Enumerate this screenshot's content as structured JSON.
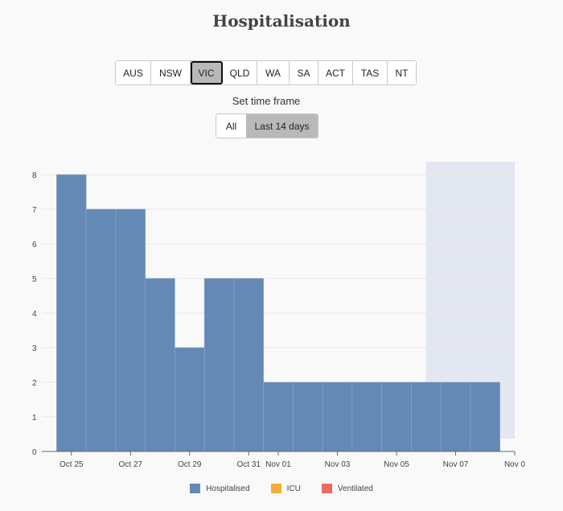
{
  "page": {
    "title": "Hospitalisation"
  },
  "regions": {
    "items": [
      "AUS",
      "NSW",
      "VIC",
      "QLD",
      "WA",
      "SA",
      "ACT",
      "TAS",
      "NT"
    ],
    "selected": "VIC"
  },
  "time_frame": {
    "label": "Set time frame",
    "options": [
      "All",
      "Last 14 days"
    ],
    "selected": "Last 14 days"
  },
  "colors": {
    "hospitalised": "#6589b5",
    "icu": "#f6ac36",
    "ventilated": "#ee6b61",
    "shaded_region": "#e3e7f1"
  },
  "chart_data": {
    "type": "bar",
    "title": "Hospitalisation",
    "xlabel": "",
    "ylabel": "",
    "ylim": [
      0,
      8
    ],
    "yticks": [
      0,
      1,
      2,
      3,
      4,
      5,
      6,
      7,
      8
    ],
    "x_range": [
      "2020-10-24",
      "2020-11-09"
    ],
    "xtick_labels": [
      {
        "date": "2020-10-25",
        "label": "Oct 25"
      },
      {
        "date": "2020-10-27",
        "label": "Oct 27"
      },
      {
        "date": "2020-10-29",
        "label": "Oct 29"
      },
      {
        "date": "2020-10-31",
        "label": "Oct 31"
      },
      {
        "date": "2020-11-01",
        "label": "Nov 01"
      },
      {
        "date": "2020-11-03",
        "label": "Nov 03"
      },
      {
        "date": "2020-11-05",
        "label": "Nov 05"
      },
      {
        "date": "2020-11-07",
        "label": "Nov 07"
      },
      {
        "date": "2020-11-09",
        "label": "Nov 0"
      }
    ],
    "shaded_range": [
      "2020-11-06",
      "2020-11-09"
    ],
    "legend": [
      "Hospitalised",
      "ICU",
      "Ventilated"
    ],
    "legend_position": "bottom",
    "grid": true,
    "series": [
      {
        "name": "Hospitalised",
        "x": [
          "2020-10-25",
          "2020-10-26",
          "2020-10-27",
          "2020-10-28",
          "2020-10-29",
          "2020-10-30",
          "2020-10-31",
          "2020-11-01",
          "2020-11-02",
          "2020-11-03",
          "2020-11-04",
          "2020-11-05",
          "2020-11-06",
          "2020-11-07",
          "2020-11-08"
        ],
        "values": [
          8,
          7,
          7,
          5,
          3,
          5,
          5,
          2,
          2,
          2,
          2,
          2,
          2,
          2,
          2
        ]
      },
      {
        "name": "ICU",
        "x": [],
        "values": []
      },
      {
        "name": "Ventilated",
        "x": [],
        "values": []
      }
    ]
  }
}
